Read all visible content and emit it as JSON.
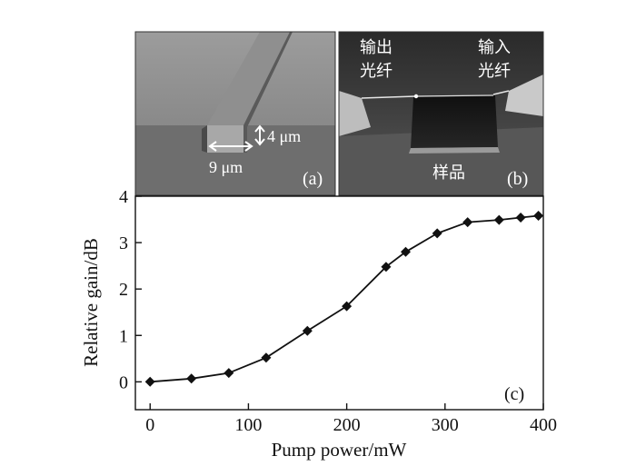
{
  "panel_a": {
    "label": "(a)",
    "height_label": "4 μm",
    "width_label": "9 μm"
  },
  "panel_b": {
    "label": "(b)",
    "output_fiber_line1": "输出",
    "output_fiber_line2": "光纤",
    "input_fiber_line1": "输入",
    "input_fiber_line2": "光纤",
    "sample_label": "样品"
  },
  "chart_data": {
    "type": "line",
    "panel_label": "(c)",
    "xlabel": "Pump power/mW",
    "ylabel": "Relative gain/dB",
    "xlim": [
      -15,
      400
    ],
    "ylim": [
      -0.6,
      4
    ],
    "xticks": [
      0,
      100,
      200,
      300,
      400
    ],
    "yticks": [
      0,
      1,
      2,
      3,
      4
    ],
    "marker": "diamond",
    "color": "#111111",
    "x": [
      0,
      42,
      80,
      118,
      160,
      200,
      240,
      260,
      292,
      323,
      355,
      377,
      395
    ],
    "y": [
      0.0,
      0.07,
      0.19,
      0.52,
      1.1,
      1.63,
      2.48,
      2.8,
      3.2,
      3.44,
      3.49,
      3.54,
      3.58
    ]
  }
}
